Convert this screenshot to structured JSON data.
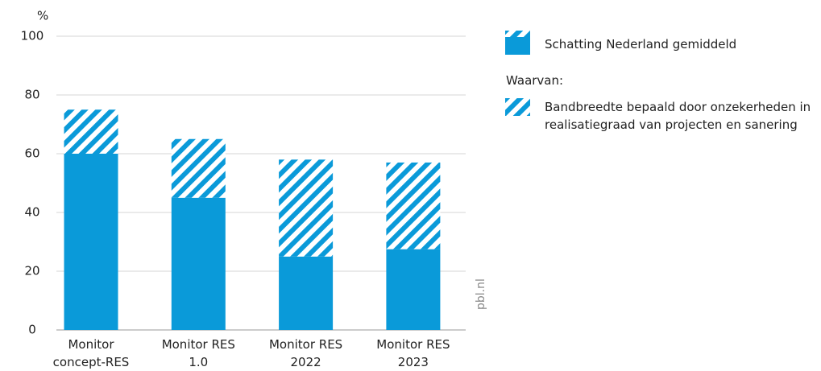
{
  "chart_data": {
    "type": "stacked_bar",
    "y_label": "%",
    "categories": [
      "Monitor concept-RES",
      "Monitor RES 1.0",
      "Monitor RES 2022",
      "Monitor RES 2023"
    ],
    "series": [
      {
        "name": "Schatting Nederland gemiddeld",
        "color": "#0a9ad9",
        "hatch": false,
        "values": [
          60,
          45,
          25,
          27.5
        ]
      },
      {
        "name": "Bandbreedte bepaald door onzekerheden in realisatiegraad van projecten en sanering",
        "color": "#0a9ad9",
        "hatch": true,
        "values": [
          15,
          20,
          33,
          29.5
        ]
      }
    ],
    "legend_subtitle": "Waarvan:",
    "source": "pbl.nl",
    "ylim": [
      0,
      100
    ],
    "yticks": [
      0,
      20,
      40,
      60,
      80,
      100
    ],
    "grid": true
  }
}
